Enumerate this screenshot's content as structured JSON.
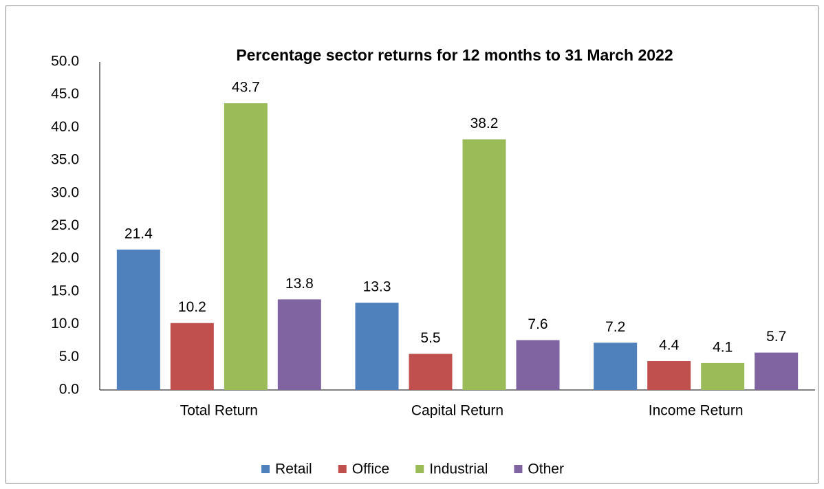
{
  "chart_data": {
    "type": "bar",
    "title": "Percentage sector returns for 12 months to 31 March 2022",
    "categories": [
      "Total Return",
      "Capital Return",
      "Income Return"
    ],
    "series": [
      {
        "name": "Retail",
        "color": "#4f81bd",
        "values": [
          21.4,
          13.3,
          7.2
        ]
      },
      {
        "name": "Office",
        "color": "#c0504d",
        "values": [
          10.2,
          5.5,
          4.4
        ]
      },
      {
        "name": "Industrial",
        "color": "#9bbb59",
        "values": [
          43.7,
          38.2,
          4.1
        ]
      },
      {
        "name": "Other",
        "color": "#8064a2",
        "values": [
          13.8,
          7.6,
          5.7
        ]
      }
    ],
    "ylim": [
      0,
      50
    ],
    "yticks": [
      {
        "value": 0,
        "label": "0.0"
      },
      {
        "value": 5,
        "label": "5.0"
      },
      {
        "value": 10,
        "label": "10.0"
      },
      {
        "value": 15,
        "label": "15.0"
      },
      {
        "value": 20,
        "label": "20.0"
      },
      {
        "value": 25,
        "label": "25.0"
      },
      {
        "value": 30,
        "label": "30.0"
      },
      {
        "value": 35,
        "label": "35.0"
      },
      {
        "value": 40,
        "label": "40.0"
      },
      {
        "value": 45,
        "label": "45.0"
      },
      {
        "value": 50,
        "label": "50.0"
      }
    ],
    "grid": false,
    "legend": "bottom"
  }
}
